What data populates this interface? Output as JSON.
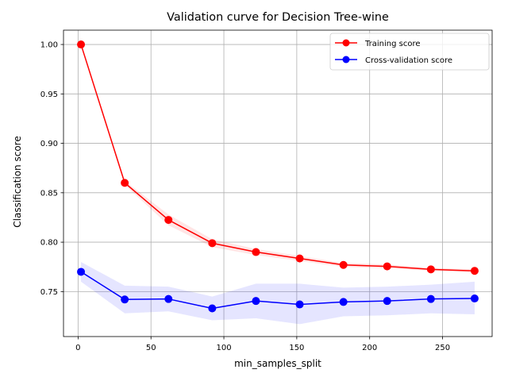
{
  "chart_data": {
    "type": "line",
    "title": "Validation curve for Decision Tree-wine",
    "xlabel": "min_samples_split",
    "ylabel": "Classification score",
    "xlim": [
      -10,
      284
    ],
    "ylim": [
      0.7045,
      1.0145
    ],
    "xticks": [
      0,
      50,
      100,
      150,
      200,
      250
    ],
    "yticks": [
      0.75,
      0.8,
      0.85,
      0.9,
      0.95,
      1.0
    ],
    "xtick_labels": [
      "0",
      "50",
      "100",
      "150",
      "200",
      "250"
    ],
    "ytick_labels": [
      "0.75",
      "0.80",
      "0.85",
      "0.90",
      "0.95",
      "1.00"
    ],
    "grid": true,
    "legend_position": "top-right",
    "x": [
      2,
      32,
      62,
      92,
      122,
      152,
      182,
      212,
      242,
      272
    ],
    "series": [
      {
        "name": "Training score",
        "color": "#ff0000",
        "band_color": "#ff0000",
        "values": [
          1.0,
          0.86,
          0.8225,
          0.799,
          0.79,
          0.7835,
          0.777,
          0.7755,
          0.7725,
          0.771
        ],
        "band_lower": [
          1.0,
          0.858,
          0.817,
          0.795,
          0.787,
          0.781,
          0.775,
          0.7735,
          0.771,
          0.7695
        ],
        "band_upper": [
          1.0,
          0.862,
          0.828,
          0.803,
          0.793,
          0.786,
          0.779,
          0.7775,
          0.774,
          0.7725
        ]
      },
      {
        "name": "Cross-validation score",
        "color": "#0000ff",
        "band_color": "#0000ff",
        "values": [
          0.77,
          0.742,
          0.7425,
          0.733,
          0.7405,
          0.737,
          0.7395,
          0.7405,
          0.7425,
          0.743
        ],
        "band_lower": [
          0.76,
          0.728,
          0.73,
          0.721,
          0.723,
          0.717,
          0.725,
          0.726,
          0.728,
          0.727
        ],
        "band_upper": [
          0.78,
          0.756,
          0.755,
          0.745,
          0.758,
          0.758,
          0.754,
          0.755,
          0.757,
          0.76
        ]
      }
    ]
  }
}
